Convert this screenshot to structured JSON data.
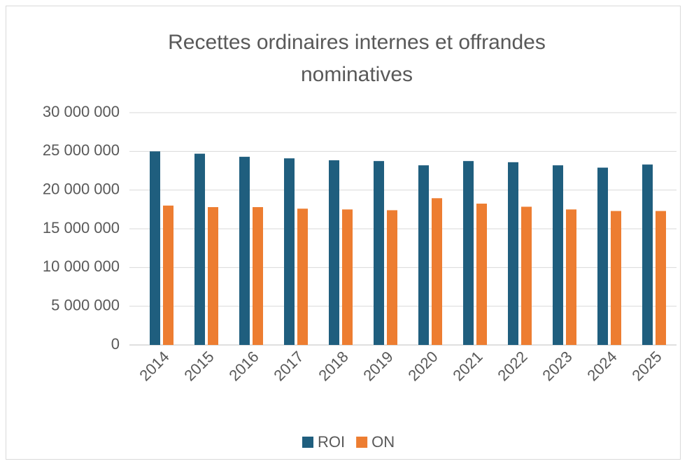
{
  "chart_data": {
    "type": "bar",
    "title": "Recettes ordinaires internes et offrandes nominatives",
    "categories": [
      "2014",
      "2015",
      "2016",
      "2017",
      "2018",
      "2019",
      "2020",
      "2021",
      "2022",
      "2023",
      "2024",
      "2025"
    ],
    "series": [
      {
        "name": "ROI",
        "color": "#1f5e7e",
        "values": [
          25000000,
          24700000,
          24300000,
          24100000,
          23850000,
          23750000,
          23200000,
          23750000,
          23600000,
          23200000,
          22900000,
          23300000
        ]
      },
      {
        "name": "ON",
        "color": "#ed7d31",
        "values": [
          18000000,
          17800000,
          17800000,
          17600000,
          17500000,
          17400000,
          18950000,
          18250000,
          17850000,
          17500000,
          17300000,
          17300000
        ]
      }
    ],
    "ylim": [
      0,
      30000000
    ],
    "yticks": [
      0,
      {
        "value": 5000000,
        "label": "5 000 000"
      },
      {
        "value": 10000000,
        "label": "10 000 000"
      },
      {
        "value": 15000000,
        "label": "15 000 000"
      },
      {
        "value": 20000000,
        "label": "20 000 000"
      },
      {
        "value": 25000000,
        "label": "25 000 000"
      },
      {
        "value": 30000000,
        "label": "30 000 000"
      }
    ],
    "grid": true,
    "legend": "bottom"
  }
}
